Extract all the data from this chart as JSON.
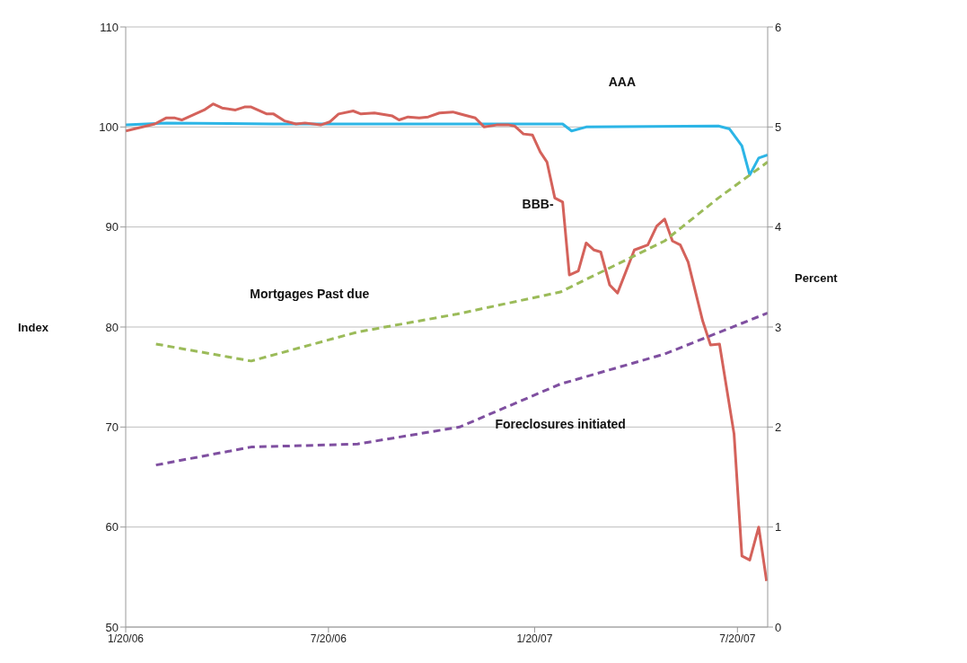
{
  "chart_data": {
    "type": "line",
    "ylabel": "Index",
    "y2label": "Percent",
    "grid": "y",
    "marker": "none",
    "xlim": [
      "2006-01-20",
      "2007-08-16"
    ],
    "xticks": [
      {
        "value": "2006-01-20",
        "label": "1/20/06"
      },
      {
        "value": "2006-07-20",
        "label": "7/20/06"
      },
      {
        "value": "2007-01-20",
        "label": "1/20/07"
      },
      {
        "value": "2007-07-20",
        "label": "7/20/07"
      }
    ],
    "ylim": [
      50,
      110
    ],
    "yticks": [
      50,
      60,
      70,
      80,
      90,
      100,
      110
    ],
    "y2lim": [
      0,
      6
    ],
    "y2ticks": [
      0,
      1,
      2,
      3,
      4,
      5,
      6
    ],
    "series": [
      {
        "name": "AAA",
        "color": "#2cb5e6",
        "line_style": "solid",
        "x": [
          "2006-01-20",
          "2006-02-25",
          "2006-06-01",
          "2006-10-27",
          "2007-02-14",
          "2007-02-22",
          "2007-03-07",
          "2007-07-03",
          "2007-07-13",
          "2007-07-24",
          "2007-07-31",
          "2007-08-08",
          "2007-08-16"
        ],
        "values": [
          100.2,
          100.4,
          100.3,
          100.3,
          100.3,
          99.6,
          100,
          100.1,
          99.8,
          98.1,
          95.2,
          96.9,
          97.2
        ]
      },
      {
        "name": "BBB-",
        "color": "#d4625b",
        "line_style": "solid",
        "x": [
          "2006-01-20",
          "2006-02-15",
          "2006-02-25",
          "2006-03-05",
          "2006-03-11",
          "2006-03-31",
          "2006-04-08",
          "2006-04-16",
          "2006-04-28",
          "2006-05-06",
          "2006-05-12",
          "2006-05-26",
          "2006-06-01",
          "2006-06-11",
          "2006-06-21",
          "2006-06-29",
          "2006-07-13",
          "2006-07-21",
          "2006-07-29",
          "2006-08-11",
          "2006-08-18",
          "2006-08-30",
          "2006-09-15",
          "2006-09-21",
          "2006-09-29",
          "2006-10-09",
          "2006-10-17",
          "2006-10-27",
          "2006-11-08",
          "2006-11-18",
          "2006-11-28",
          "2006-12-06",
          "2006-12-17",
          "2006-12-28",
          "2007-01-02",
          "2007-01-10",
          "2007-01-18",
          "2007-01-25",
          "2007-01-31",
          "2007-02-07",
          "2007-02-14",
          "2007-02-20",
          "2007-02-28",
          "2007-03-07",
          "2007-03-14",
          "2007-03-20",
          "2007-03-28",
          "2007-04-04",
          "2007-04-19",
          "2007-05-01",
          "2007-05-09",
          "2007-05-16",
          "2007-05-23",
          "2007-05-30",
          "2007-06-06",
          "2007-06-19",
          "2007-06-26",
          "2007-07-04",
          "2007-07-17",
          "2007-07-24",
          "2007-07-31",
          "2007-08-08",
          "2007-08-15"
        ],
        "values": [
          99.6,
          100.3,
          100.9,
          100.9,
          100.7,
          101.7,
          102.3,
          101.9,
          101.7,
          102,
          102,
          101.3,
          101.3,
          100.6,
          100.3,
          100.4,
          100.2,
          100.5,
          101.3,
          101.6,
          101.3,
          101.4,
          101.1,
          100.7,
          101,
          100.9,
          101,
          101.4,
          101.5,
          101.2,
          100.9,
          100,
          100.2,
          100.2,
          100.1,
          99.3,
          99.2,
          97.5,
          96.5,
          92.9,
          92.5,
          85.2,
          85.6,
          88.4,
          87.7,
          87.5,
          84.2,
          83.4,
          87.7,
          88.2,
          90.1,
          90.8,
          88.6,
          88.2,
          86.5,
          80.6,
          78.2,
          78.3,
          69.3,
          57.1,
          56.7,
          60,
          54.6
        ]
      },
      {
        "name": "Mortgages Past due",
        "color": "#9bbb59",
        "line_style": "dashed",
        "axis": "y2",
        "x": [
          "2006-02-16",
          "2006-05-12",
          "2006-08-15",
          "2006-11-12",
          "2007-02-12",
          "2007-05-16",
          "2007-07-03",
          "2007-08-16"
        ],
        "values": [
          2.83,
          2.66,
          2.95,
          3.13,
          3.35,
          3.86,
          4.29,
          4.65
        ]
      },
      {
        "name": "Foreclosures initiated",
        "color": "#7f4fa0",
        "line_style": "dashed",
        "axis": "y2",
        "x": [
          "2006-02-16",
          "2006-05-12",
          "2006-08-15",
          "2006-11-14",
          "2007-02-12",
          "2007-05-16",
          "2007-08-16"
        ],
        "values": [
          1.62,
          1.8,
          1.83,
          2.0,
          2.43,
          2.73,
          3.14
        ]
      }
    ]
  }
}
